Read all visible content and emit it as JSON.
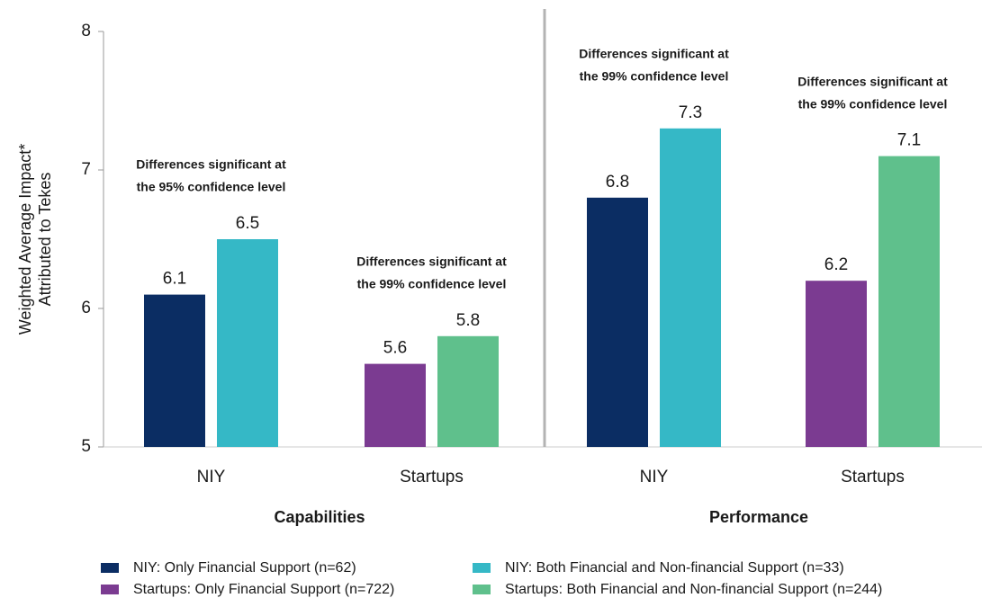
{
  "chart_data": {
    "type": "bar",
    "ylabel": [
      "Weighted Average Impact*",
      "Attributed to Tekes"
    ],
    "groups": [
      "Capabilities",
      "Performance"
    ],
    "categories": [
      "NIY",
      "Startups",
      "NIY",
      "Startups"
    ],
    "series": [
      {
        "name": "NIY: Only Financial Support (n=62)",
        "color": "#0b2d63",
        "values": [
          6.1,
          null,
          6.8,
          null
        ]
      },
      {
        "name": "NIY: Both Financial and Non-financial Support (n=33)",
        "color": "#35b8c6",
        "values": [
          6.5,
          null,
          7.3,
          null
        ]
      },
      {
        "name": "Startups: Only Financial Support (n=722)",
        "color": "#7b3b91",
        "values": [
          null,
          5.6,
          null,
          6.2
        ]
      },
      {
        "name": "Startups: Both Financial and Non-financial Support (n=244)",
        "color": "#5fc08c",
        "values": [
          null,
          5.8,
          null,
          7.1
        ]
      }
    ],
    "annotations": [
      [
        "Differences significant at",
        "the 95% confidence level"
      ],
      [
        "Differences significant at",
        "the 99% confidence level"
      ],
      [
        "Differences significant at",
        "the 99% confidence level"
      ],
      [
        "Differences significant at",
        "the 99% confidence level"
      ]
    ],
    "ylim": [
      5,
      8
    ],
    "yticks": [
      5,
      6,
      7,
      8
    ]
  }
}
